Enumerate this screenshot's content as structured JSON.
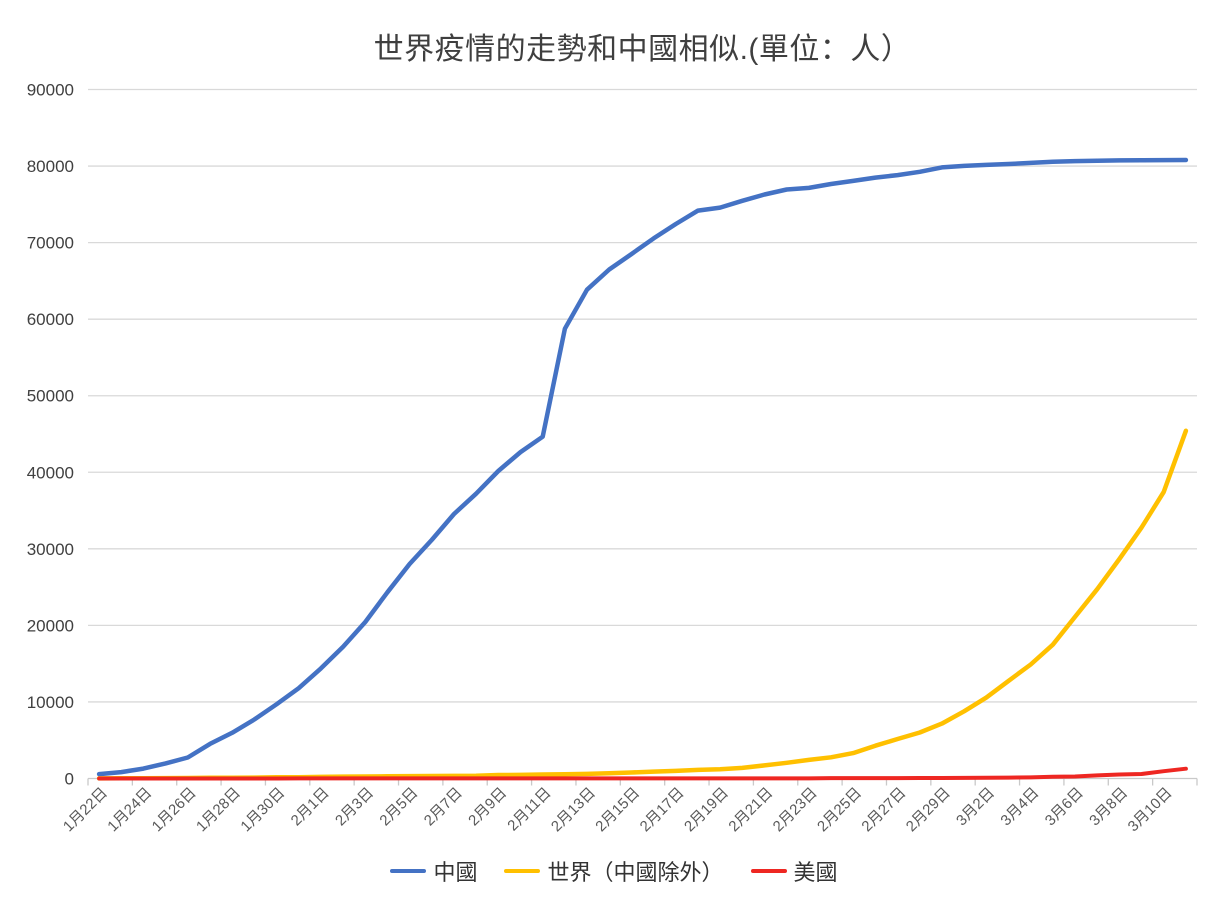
{
  "chart_data": {
    "type": "line",
    "title": "世界疫情的走勢和中國相似.(單位：人）",
    "xlabel": "",
    "ylabel": "",
    "ylim": [
      0,
      90000
    ],
    "y_tick_step": 10000,
    "y_tick_labels": [
      "0",
      "10000",
      "20000",
      "30000",
      "40000",
      "50000",
      "60000",
      "70000",
      "80000",
      "90000"
    ],
    "x_tick_labels": [
      "1月22日",
      "1月24日",
      "1月26日",
      "1月28日",
      "1月30日",
      "2月1日",
      "2月3日",
      "2月5日",
      "2月7日",
      "2月9日",
      "2月11日",
      "2月13日",
      "2月15日",
      "2月17日",
      "2月19日",
      "2月21日",
      "2月23日",
      "2月25日",
      "2月27日",
      "2月29日",
      "3月2日",
      "3月4日",
      "3月6日",
      "3月8日",
      "3月10日"
    ],
    "categories_per_tick": 2,
    "n_points": 50,
    "grid": "horizontal",
    "legend_position": "bottom",
    "colors": {
      "grid": "#D9D9D9",
      "axis": "#C9C9C9"
    },
    "series": [
      {
        "name": "中國",
        "color": "#4472C4",
        "line_width": 4.5,
        "values": [
          571,
          830,
          1287,
          1975,
          2744,
          4515,
          5974,
          7711,
          9692,
          11791,
          14380,
          17205,
          20438,
          24324,
          28018,
          31161,
          34546,
          37198,
          40171,
          42638,
          44653,
          58761,
          63851,
          66492,
          68500,
          70548,
          72436,
          74185,
          74576,
          75465,
          76288,
          76936,
          77150,
          77658,
          78064,
          78497,
          78824,
          79251,
          79824,
          80026,
          80151,
          80270,
          80409,
          80552,
          80651,
          80695,
          80735,
          80754,
          80778,
          80793
        ]
      },
      {
        "name": "世界（中國除外）",
        "color": "#FFC000",
        "line_width": 4.5,
        "values": [
          14,
          25,
          40,
          57,
          64,
          87,
          105,
          118,
          153,
          164,
          211,
          248,
          266,
          288,
          311,
          330,
          345,
          361,
          457,
          476,
          526,
          549,
          595,
          685,
          780,
          896,
          999,
          1124,
          1212,
          1385,
          1715,
          2055,
          2429,
          2764,
          3323,
          4288,
          5157,
          6009,
          7169,
          8774,
          10566,
          12754,
          14890,
          17481,
          21110,
          24727,
          28673,
          32778,
          37420,
          45421
        ]
      },
      {
        "name": "美國",
        "color": "#EE2722",
        "line_width": 4,
        "values": [
          1,
          1,
          2,
          2,
          5,
          5,
          5,
          5,
          5,
          7,
          8,
          8,
          11,
          11,
          11,
          11,
          11,
          11,
          11,
          11,
          12,
          12,
          13,
          13,
          13,
          13,
          13,
          13,
          13,
          13,
          15,
          15,
          15,
          51,
          51,
          57,
          58,
          60,
          68,
          74,
          98,
          118,
          149,
          217,
          262,
          402,
          518,
          583,
          959,
          1281
        ]
      }
    ]
  }
}
